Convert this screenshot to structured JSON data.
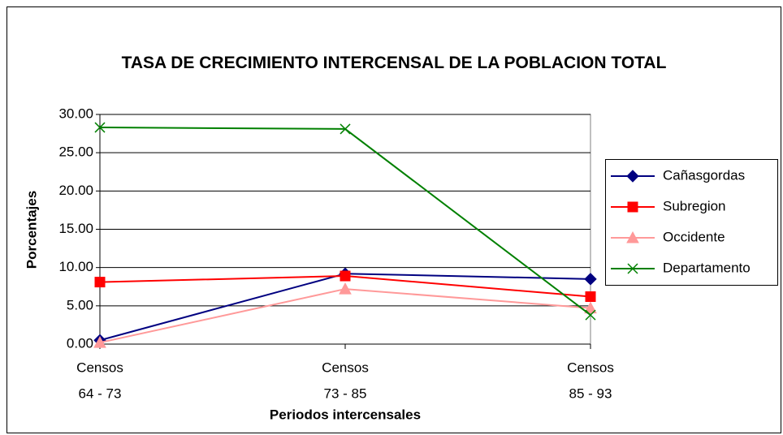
{
  "chart_data": {
    "type": "line",
    "title": "TASA DE CRECIMIENTO INTERCENSAL DE LA POBLACION TOTAL",
    "x_label": "Periodos intercensales",
    "y_label": "Porcentajes",
    "categories": [
      [
        "Censos",
        "64 - 73"
      ],
      [
        "Censos",
        "73 - 85"
      ],
      [
        "Censos",
        "85 - 93"
      ]
    ],
    "series": [
      {
        "name": "Cañasgordas",
        "color": "#000080",
        "marker": "diamond",
        "values": [
          0.5,
          9.2,
          8.5
        ]
      },
      {
        "name": "Subregion",
        "color": "#ff0000",
        "marker": "square",
        "values": [
          8.1,
          8.9,
          6.2
        ]
      },
      {
        "name": "Occidente",
        "color": "#ff9999",
        "marker": "triangle",
        "values": [
          0.2,
          7.2,
          4.7
        ]
      },
      {
        "name": "Departamento",
        "color": "#008000",
        "marker": "x",
        "values": [
          28.3,
          28.1,
          3.8
        ]
      }
    ],
    "ylim": [
      0,
      30
    ],
    "yticks": [
      {
        "value": 0,
        "label": "0.00"
      },
      {
        "value": 5,
        "label": "5.00"
      },
      {
        "value": 10,
        "label": "10.00"
      },
      {
        "value": 15,
        "label": "15.00"
      },
      {
        "value": 20,
        "label": "20.00"
      },
      {
        "value": 25,
        "label": "25.00"
      },
      {
        "value": 30,
        "label": "30.00"
      }
    ],
    "grid": true,
    "legend": "right"
  }
}
